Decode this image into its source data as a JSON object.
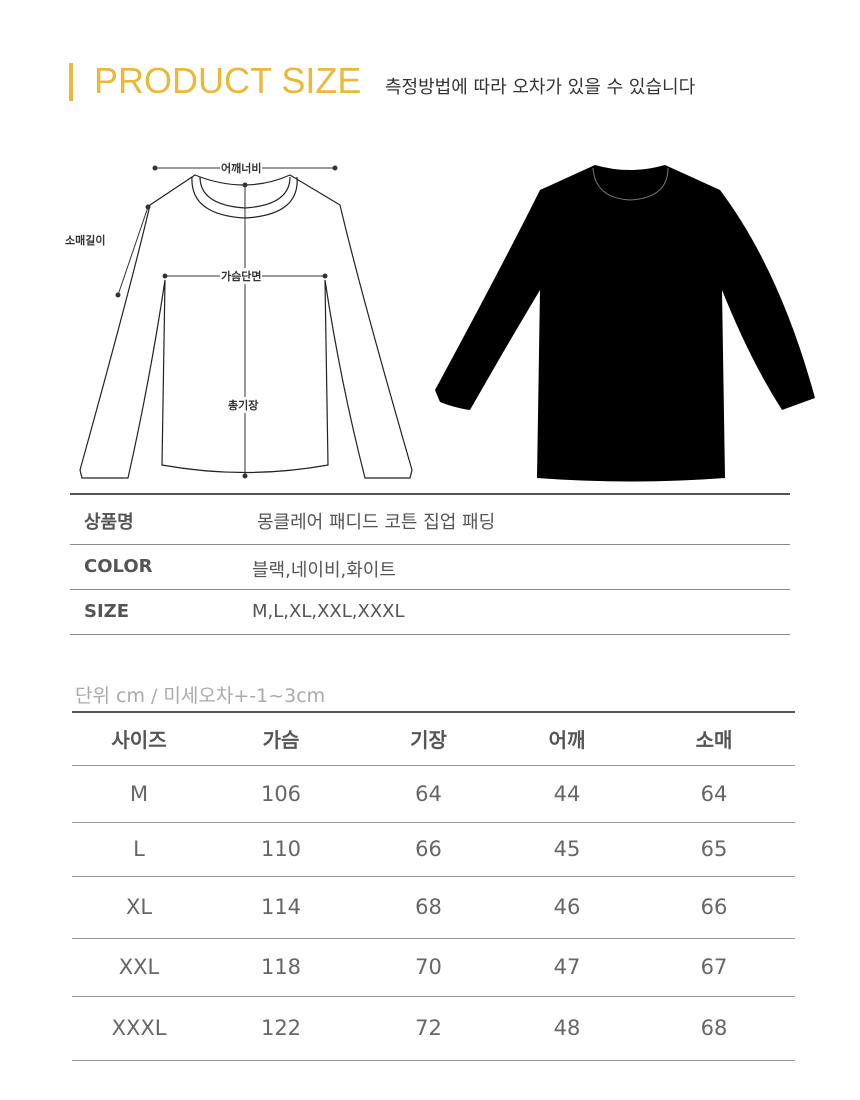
{
  "header": {
    "title": "PRODUCT SIZE",
    "subtitle": "측정방법에 따라 오차가 있을 수 있습니다",
    "accent_color": "#e8b93a"
  },
  "diagram": {
    "shoulder": "어깨너비",
    "sleeve": "소매길이",
    "chest": "가슴단면",
    "length": "총기장"
  },
  "info": [
    {
      "label": "상품명",
      "value": "몽클레어 패디드 코튼 집업 패딩"
    },
    {
      "label": "COLOR",
      "value": "블랙,네이비,화이트"
    },
    {
      "label": "SIZE",
      "value": "M,L,XL,XXL,XXXL"
    }
  ],
  "unit_note": "단위 cm / 미세오차+-1~3cm",
  "size_table": {
    "headers": [
      "사이즈",
      "가슴",
      "기장",
      "어깨",
      "소매"
    ],
    "rows": [
      [
        "M",
        "106",
        "64",
        "44",
        "64"
      ],
      [
        "L",
        "110",
        "66",
        "45",
        "65"
      ],
      [
        "XL",
        "114",
        "68",
        "46",
        "66"
      ],
      [
        "XXL",
        "118",
        "70",
        "47",
        "67"
      ],
      [
        "XXXL",
        "122",
        "72",
        "48",
        "68"
      ]
    ]
  }
}
